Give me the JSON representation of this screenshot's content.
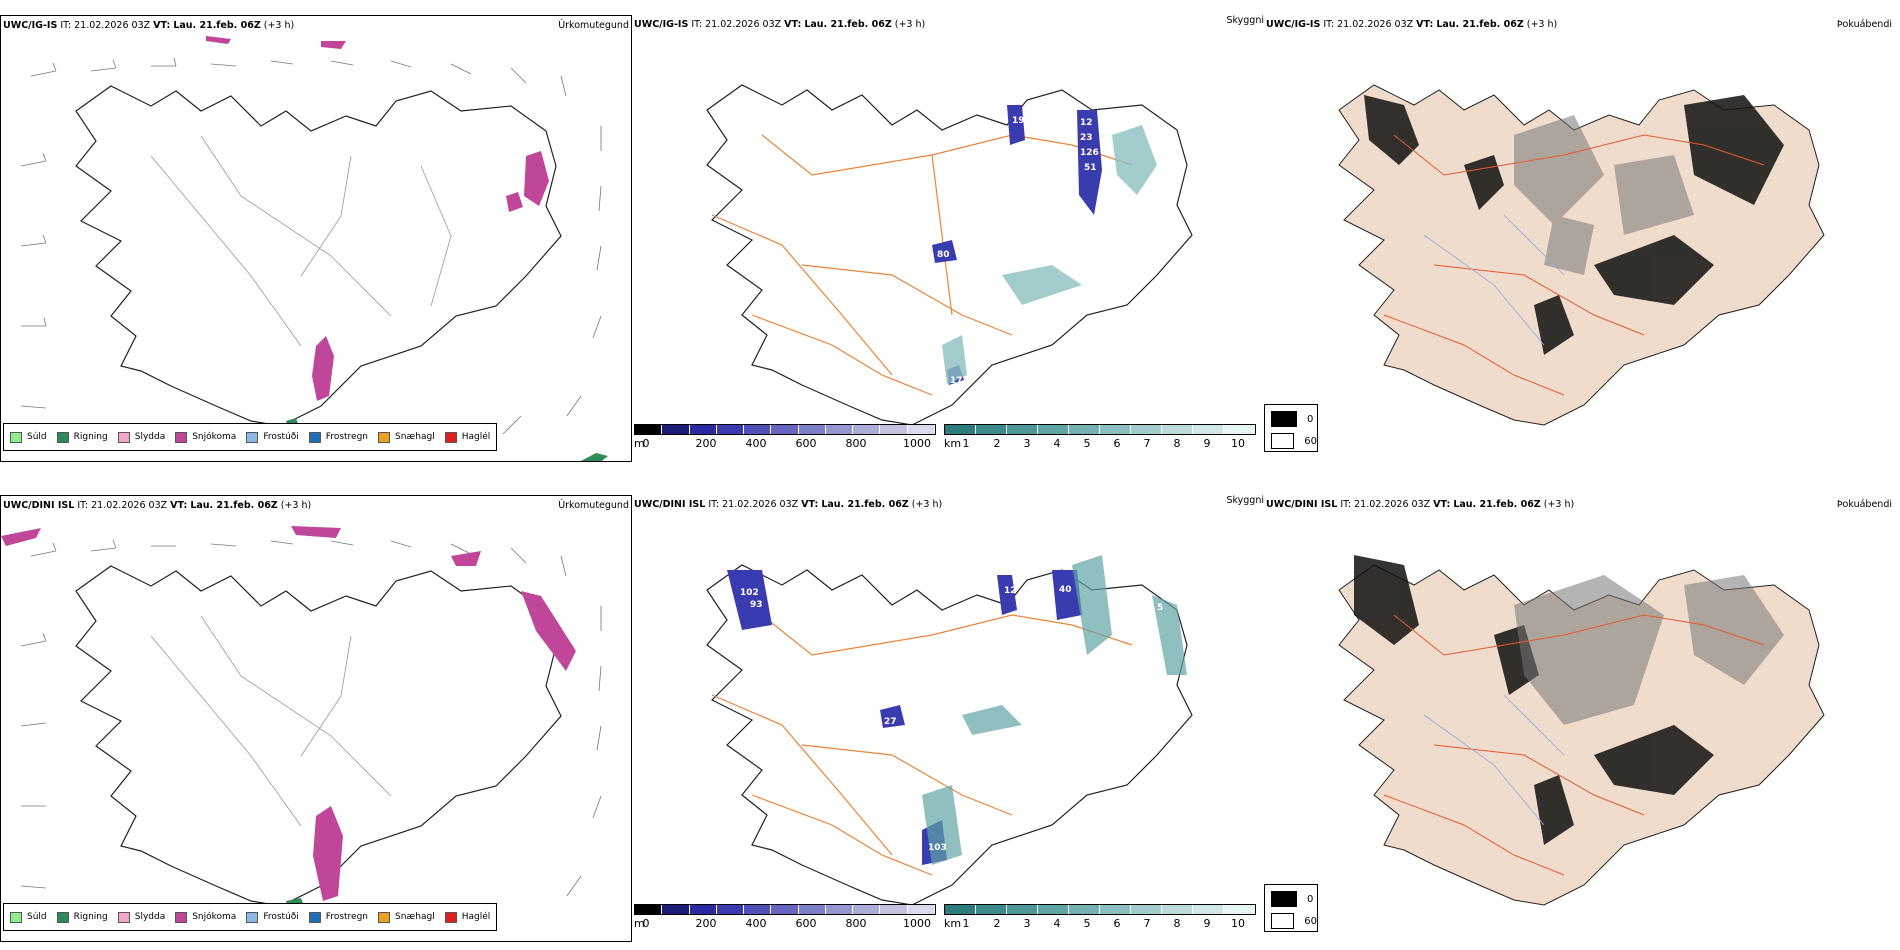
{
  "colors": {
    "precip": [
      "#90ee90",
      "#2e8b57",
      "#f3a6c8",
      "#c0469a",
      "#8fb6e8",
      "#1f6fb5",
      "#f0a020",
      "#e0201e"
    ],
    "depth": [
      "#000000",
      "#1c1c78",
      "#2a2aa0",
      "#3b3bb0",
      "#5050b8",
      "#6666c0",
      "#7d7dc8",
      "#9595d0",
      "#acacd8",
      "#c3c3e0",
      "#dadaee"
    ],
    "vis": [
      "#2e7d7d",
      "#3c8a8a",
      "#4d9797",
      "#60a4a4",
      "#76b2b2",
      "#8cc0c0",
      "#a3cdcd",
      "#bbdada",
      "#d2e8e8",
      "#e9f4f4"
    ],
    "land": "#efdccd",
    "roads": "#e8843a",
    "cloud_roads": "#e85a30"
  },
  "rows": [
    {
      "model": "UWC/IG-IS",
      "it_label": "IT:",
      "it_value": "21.02.2026 03Z",
      "vt_label": "VT:",
      "vt_value": "Lau. 21.feb. 06Z",
      "offset": "(+3 h)",
      "left_label": "Úrkomutegund",
      "mid_label": "Skyggni",
      "right_label": "Þokuábendi",
      "snow_labels": [
        "12",
        "23",
        "126",
        "51",
        "80",
        "17",
        "19"
      ]
    },
    {
      "model": "UWC/DINI ISL",
      "it_label": "IT:",
      "it_value": "21.02.2026 03Z",
      "vt_label": "VT:",
      "vt_value": "Lau. 21.feb. 06Z",
      "offset": "(+3 h)",
      "left_label": "Úrkomutegund",
      "mid_label": "Skyggni",
      "right_label": "Þokuábendi",
      "snow_labels": [
        "102",
        "93",
        "40",
        "12",
        "27",
        "103",
        "5"
      ]
    }
  ],
  "legend": [
    "Súld",
    "Rigning",
    "Slydda",
    "Snjókoma",
    "Frostúði",
    "Frostregn",
    "Snæhagl",
    "Haglél"
  ],
  "depth_bar": {
    "unit": "m",
    "ticks": [
      "0",
      "200",
      "400",
      "600",
      "800",
      "1000"
    ]
  },
  "vis_bar": {
    "unit": "km",
    "ticks": [
      "1",
      "2",
      "3",
      "4",
      "5",
      "6",
      "7",
      "8",
      "9",
      "10"
    ]
  },
  "fog_legend": [
    "0",
    "60"
  ]
}
